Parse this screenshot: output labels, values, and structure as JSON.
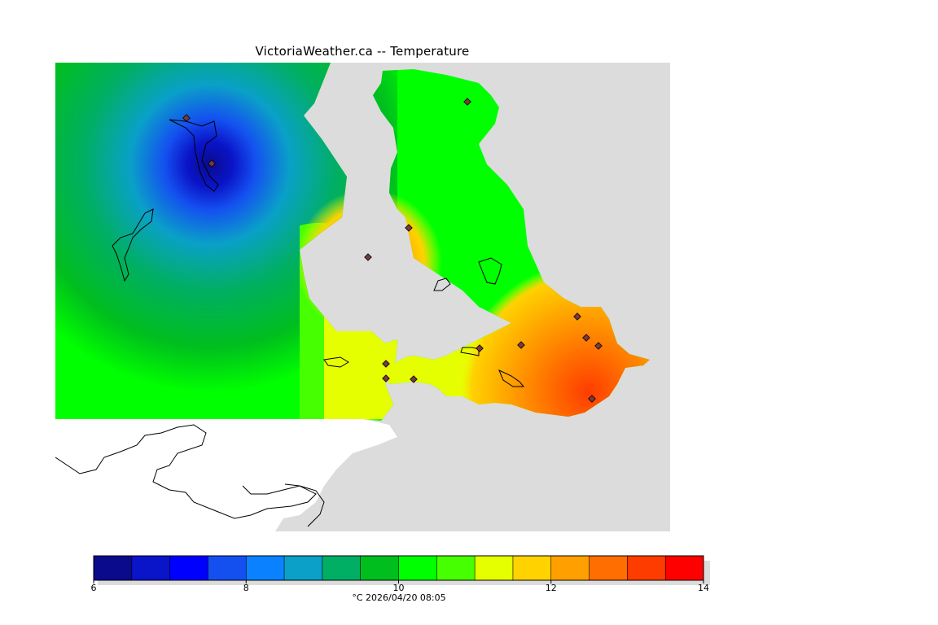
{
  "title": "VictoriaWeather.ca -- Temperature",
  "legend": {
    "units_timestamp": "°C  2026/04/20 08:05",
    "tick_labels": [
      "6",
      "8",
      "10",
      "12",
      "14"
    ],
    "tick_values": [
      6,
      8,
      10,
      12,
      14
    ],
    "range": [
      6,
      14
    ],
    "step": 0.5,
    "colors": [
      "#0a0a8c",
      "#0a14c8",
      "#0000ff",
      "#1450f0",
      "#0a82ff",
      "#0aa0c8",
      "#00af64",
      "#00be1e",
      "#00ff00",
      "#46ff00",
      "#e6ff00",
      "#ffd200",
      "#ffa000",
      "#ff6e00",
      "#ff3c00",
      "#ff0000"
    ]
  },
  "map": {
    "station_temperatures": [
      7.2,
      7.0,
      10.3,
      10.0,
      12.4,
      10.4,
      10.5,
      10.8,
      11.5,
      13.0,
      13.2,
      13.1,
      13.4,
      10.6
    ]
  }
}
